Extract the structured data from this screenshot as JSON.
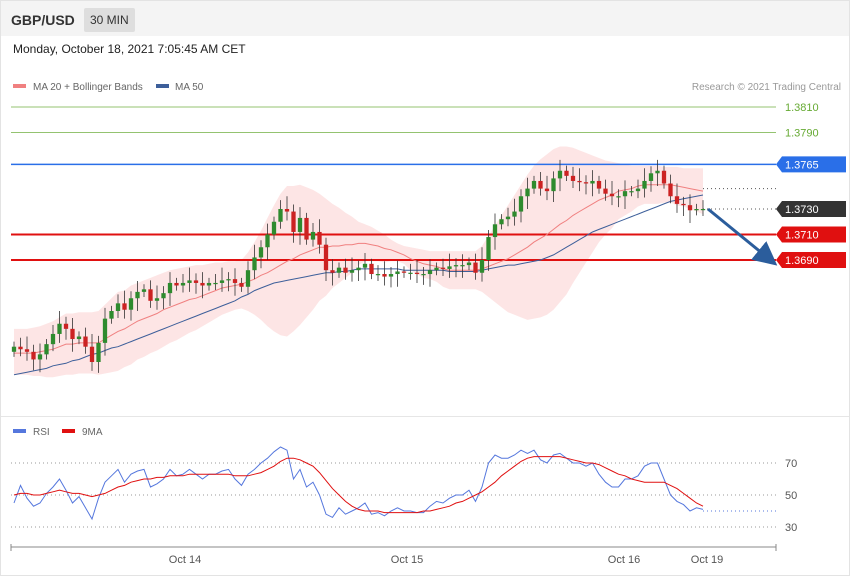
{
  "header": {
    "pair": "GBP/USD",
    "timeframe": "30 MIN",
    "datetime": "Monday, October 18, 2021 7:05:45 AM CET"
  },
  "watermark": "Research © 2021 Trading Central",
  "colors": {
    "ma20": "#f08080",
    "ma50": "#3d5f9a",
    "band_fill": "#fde0e0",
    "bull": "#2e8b2e",
    "bear": "#cc2222",
    "target_green": "#66aa33",
    "pivot_blue": "#2a6fe8",
    "support_red": "#e01010",
    "current_dark": "#333333",
    "rsi": "#5577dd",
    "rsi_ma": "#e01010",
    "arrow": "#2b5d9c"
  },
  "chart_data": [
    {
      "type": "candlestick",
      "title": "",
      "legend": [
        {
          "name": "MA 20 + Bollinger Bands",
          "color": "#f08080"
        },
        {
          "name": "MA 50",
          "color": "#3d5f9a"
        }
      ],
      "levels": [
        {
          "value": 1.381,
          "label": "1.3810",
          "kind": "resistance"
        },
        {
          "value": 1.379,
          "label": "1.3790",
          "kind": "resistance"
        },
        {
          "value": 1.3765,
          "label": "1.3765",
          "kind": "pivot"
        },
        {
          "value": 1.373,
          "label": "1.3730",
          "kind": "current"
        },
        {
          "value": 1.371,
          "label": "1.3710",
          "kind": "support"
        },
        {
          "value": 1.369,
          "label": "1.3690",
          "kind": "support"
        }
      ],
      "x_ticks": [
        "Oct 14",
        "Oct 15",
        "Oct 16",
        "Oct 19"
      ],
      "ylim": [
        1.3574,
        1.3819
      ],
      "closes": [
        1.3622,
        1.362,
        1.3618,
        1.3612,
        1.3616,
        1.3624,
        1.3632,
        1.364,
        1.3636,
        1.3628,
        1.363,
        1.3622,
        1.361,
        1.3625,
        1.3644,
        1.365,
        1.3656,
        1.3651,
        1.366,
        1.3665,
        1.3667,
        1.3658,
        1.366,
        1.3664,
        1.3672,
        1.367,
        1.3672,
        1.3674,
        1.3672,
        1.367,
        1.3672,
        1.3672,
        1.3674,
        1.3675,
        1.3672,
        1.3669,
        1.3682,
        1.3692,
        1.37,
        1.371,
        1.372,
        1.373,
        1.3728,
        1.3712,
        1.3723,
        1.3706,
        1.3712,
        1.3702,
        1.3682,
        1.368,
        1.3684,
        1.368,
        1.3682,
        1.3684,
        1.3687,
        1.3679,
        1.3679,
        1.3677,
        1.3679,
        1.3681,
        1.368,
        1.368,
        1.3679,
        1.3679,
        1.3682,
        1.3684,
        1.3683,
        1.3685,
        1.3686,
        1.3686,
        1.3688,
        1.368,
        1.369,
        1.3708,
        1.3718,
        1.3722,
        1.3724,
        1.3728,
        1.374,
        1.3746,
        1.3752,
        1.3746,
        1.3744,
        1.3754,
        1.376,
        1.3756,
        1.3752,
        1.3751,
        1.375,
        1.3752,
        1.3746,
        1.3742,
        1.374,
        1.374,
        1.3744,
        1.3744,
        1.3746,
        1.3752,
        1.3758,
        1.376,
        1.375,
        1.374,
        1.3734,
        1.3733,
        1.3729,
        1.373,
        1.373
      ],
      "ma20": [
        1.3617,
        1.3617,
        1.3617,
        1.3617,
        1.3618,
        1.3619,
        1.362,
        1.3622,
        1.3624,
        1.3624,
        1.3625,
        1.3625,
        1.3625,
        1.3625,
        1.3628,
        1.3631,
        1.3634,
        1.3636,
        1.3639,
        1.3642,
        1.3644,
        1.3646,
        1.3648,
        1.3651,
        1.3653,
        1.3655,
        1.3657,
        1.3659,
        1.366,
        1.3662,
        1.3664,
        1.3666,
        1.3668,
        1.3669,
        1.367,
        1.3671,
        1.3673,
        1.3675,
        1.3678,
        1.368,
        1.3683,
        1.3686,
        1.3689,
        1.3691,
        1.3694,
        1.3696,
        1.3698,
        1.37,
        1.37,
        1.3701,
        1.3701,
        1.3702,
        1.3702,
        1.3703,
        1.3703,
        1.3702,
        1.3701,
        1.3699,
        1.3698,
        1.3696,
        1.3694,
        1.3691,
        1.3689,
        1.3687,
        1.3686,
        1.3685,
        1.3683,
        1.3682,
        1.3682,
        1.3682,
        1.3682,
        1.3682,
        1.3683,
        1.3685,
        1.3687,
        1.3689,
        1.3691,
        1.3694,
        1.3697,
        1.37,
        1.3704,
        1.3707,
        1.371,
        1.3714,
        1.3718,
        1.3721,
        1.3725,
        1.3728,
        1.3731,
        1.3734,
        1.3737,
        1.3739,
        1.3741,
        1.3744,
        1.3745,
        1.3746,
        1.3748,
        1.3749,
        1.3749,
        1.3749,
        1.3749,
        1.3749,
        1.3748,
        1.3747,
        1.3746,
        1.3745,
        1.3744
      ],
      "band_upper": [
        1.3636,
        1.3636,
        1.3636,
        1.3637,
        1.3638,
        1.364,
        1.3642,
        1.3645,
        1.3648,
        1.3648,
        1.3649,
        1.3649,
        1.3649,
        1.365,
        1.3655,
        1.366,
        1.3665,
        1.3666,
        1.367,
        1.3672,
        1.3674,
        1.3676,
        1.3678,
        1.368,
        1.3682,
        1.3683,
        1.3684,
        1.3685,
        1.3686,
        1.3686,
        1.3687,
        1.3688,
        1.3688,
        1.3689,
        1.3689,
        1.369,
        1.3696,
        1.3704,
        1.3713,
        1.3723,
        1.3733,
        1.3742,
        1.3748,
        1.3748,
        1.3749,
        1.3747,
        1.3745,
        1.3742,
        1.3738,
        1.3734,
        1.3731,
        1.3727,
        1.3724,
        1.372,
        1.3718,
        1.3716,
        1.3713,
        1.371,
        1.3706,
        1.3703,
        1.3701,
        1.37,
        1.3699,
        1.3698,
        1.3697,
        1.3697,
        1.3697,
        1.3697,
        1.3697,
        1.3697,
        1.3697,
        1.3697,
        1.3701,
        1.3709,
        1.3717,
        1.3725,
        1.3733,
        1.3741,
        1.3749,
        1.3757,
        1.3764,
        1.3769,
        1.3773,
        1.3777,
        1.3779,
        1.3779,
        1.3778,
        1.3776,
        1.3774,
        1.3772,
        1.377,
        1.3768,
        1.3767,
        1.3766,
        1.3765,
        1.3764,
        1.3764,
        1.3764,
        1.3764,
        1.3764,
        1.3763,
        1.3763,
        1.3763,
        1.3762,
        1.3762,
        1.3762,
        1.3762
      ],
      "band_lower": [
        1.36,
        1.36,
        1.36,
        1.3599,
        1.3599,
        1.3598,
        1.3598,
        1.3599,
        1.36,
        1.36,
        1.3601,
        1.3601,
        1.3601,
        1.36,
        1.3601,
        1.3602,
        1.3603,
        1.3606,
        1.3608,
        1.3612,
        1.3614,
        1.3617,
        1.3619,
        1.3622,
        1.3625,
        1.3627,
        1.363,
        1.3633,
        1.3635,
        1.3638,
        1.3641,
        1.3644,
        1.3647,
        1.3649,
        1.3651,
        1.3652,
        1.365,
        1.3647,
        1.3643,
        1.3638,
        1.3634,
        1.3631,
        1.363,
        1.3634,
        1.3639,
        1.3645,
        1.3651,
        1.3658,
        1.3662,
        1.3668,
        1.3672,
        1.3676,
        1.368,
        1.3686,
        1.3689,
        1.3689,
        1.3689,
        1.3688,
        1.3689,
        1.3689,
        1.3687,
        1.3682,
        1.3679,
        1.3676,
        1.3675,
        1.3673,
        1.3669,
        1.3667,
        1.3667,
        1.3667,
        1.3667,
        1.3667,
        1.3665,
        1.3661,
        1.3657,
        1.3653,
        1.3649,
        1.3647,
        1.3645,
        1.3643,
        1.3644,
        1.3645,
        1.3647,
        1.3651,
        1.3657,
        1.3663,
        1.3672,
        1.368,
        1.3688,
        1.3696,
        1.3704,
        1.371,
        1.3715,
        1.3722,
        1.3725,
        1.3728,
        1.3732,
        1.3734,
        1.3734,
        1.3734,
        1.3735,
        1.3735,
        1.3733,
        1.3732,
        1.373,
        1.3728,
        1.3726
      ],
      "ma50": [
        1.36,
        1.3601,
        1.3602,
        1.3603,
        1.3604,
        1.3605,
        1.3607,
        1.3608,
        1.3609,
        1.3611,
        1.3612,
        1.3614,
        1.3616,
        1.3617,
        1.3619,
        1.3621,
        1.3622,
        1.3624,
        1.3626,
        1.3628,
        1.363,
        1.3632,
        1.3634,
        1.3636,
        1.3638,
        1.364,
        1.3642,
        1.3644,
        1.3646,
        1.3648,
        1.365,
        1.3652,
        1.3654,
        1.3656,
        1.3658,
        1.3661,
        1.3663,
        1.3666,
        1.3668,
        1.367,
        1.3672,
        1.3673,
        1.3674,
        1.3675,
        1.3676,
        1.3677,
        1.3678,
        1.3679,
        1.368,
        1.368,
        1.3681,
        1.3681,
        1.3682,
        1.3683,
        1.3683,
        1.3683,
        1.3683,
        1.3683,
        1.3683,
        1.3683,
        1.3682,
        1.3682,
        1.3682,
        1.3682,
        1.3682,
        1.3682,
        1.3682,
        1.3681,
        1.3681,
        1.3681,
        1.3681,
        1.3681,
        1.3682,
        1.3683,
        1.3684,
        1.3685,
        1.3686,
        1.3686,
        1.3687,
        1.3688,
        1.3689,
        1.369,
        1.3692,
        1.3694,
        1.3697,
        1.37,
        1.3703,
        1.3706,
        1.3709,
        1.3712,
        1.3714,
        1.3716,
        1.3718,
        1.372,
        1.3722,
        1.3724,
        1.3726,
        1.3728,
        1.373,
        1.3732,
        1.3734,
        1.3736,
        1.3737,
        1.3738,
        1.3739,
        1.374,
        1.3741
      ],
      "forecast": {
        "from": 1.373,
        "to": 1.369,
        "direction": "down"
      }
    },
    {
      "type": "line",
      "title": "",
      "legend": [
        {
          "name": "RSI",
          "color": "#5577dd"
        },
        {
          "name": "9MA",
          "color": "#e01010"
        }
      ],
      "levels": [
        70,
        50,
        30
      ],
      "ylim": [
        20,
        80
      ],
      "series": [
        {
          "name": "RSI",
          "values": [
            45,
            56,
            48,
            43,
            45,
            51,
            55,
            60,
            53,
            45,
            49,
            42,
            35,
            48,
            58,
            62,
            66,
            58,
            63,
            65,
            66,
            55,
            57,
            60,
            66,
            62,
            63,
            66,
            63,
            60,
            63,
            63,
            65,
            66,
            60,
            56,
            63,
            66,
            70,
            73,
            77,
            80,
            78,
            60,
            66,
            55,
            58,
            50,
            38,
            36,
            42,
            38,
            40,
            42,
            45,
            38,
            39,
            37,
            40,
            42,
            40,
            40,
            39,
            39,
            43,
            46,
            45,
            48,
            50,
            50,
            53,
            46,
            55,
            70,
            75,
            73,
            73,
            75,
            78,
            76,
            78,
            72,
            70,
            75,
            76,
            73,
            70,
            70,
            68,
            70,
            63,
            58,
            55,
            55,
            60,
            60,
            62,
            68,
            70,
            70,
            60,
            50,
            46,
            44,
            40,
            42,
            41
          ]
        },
        {
          "name": "9MA",
          "values": [
            50,
            51,
            51,
            50,
            50,
            51,
            52,
            53,
            52,
            51,
            51,
            50,
            49,
            50,
            51,
            53,
            55,
            56,
            58,
            59,
            60,
            60,
            61,
            61,
            62,
            62,
            62,
            63,
            63,
            63,
            63,
            63,
            63,
            63,
            62,
            62,
            62,
            63,
            64,
            66,
            68,
            71,
            73,
            73,
            72,
            70,
            68,
            64,
            59,
            54,
            50,
            46,
            43,
            41,
            40,
            40,
            40,
            39,
            39,
            39,
            39,
            39,
            39,
            40,
            40,
            41,
            42,
            43,
            45,
            46,
            48,
            50,
            52,
            55,
            58,
            62,
            65,
            68,
            71,
            73,
            74,
            74,
            74,
            74,
            74,
            73,
            72,
            71,
            70,
            70,
            69,
            67,
            65,
            63,
            62,
            60,
            59,
            58,
            58,
            58,
            58,
            56,
            54,
            51,
            48,
            45,
            43
          ]
        }
      ]
    }
  ]
}
